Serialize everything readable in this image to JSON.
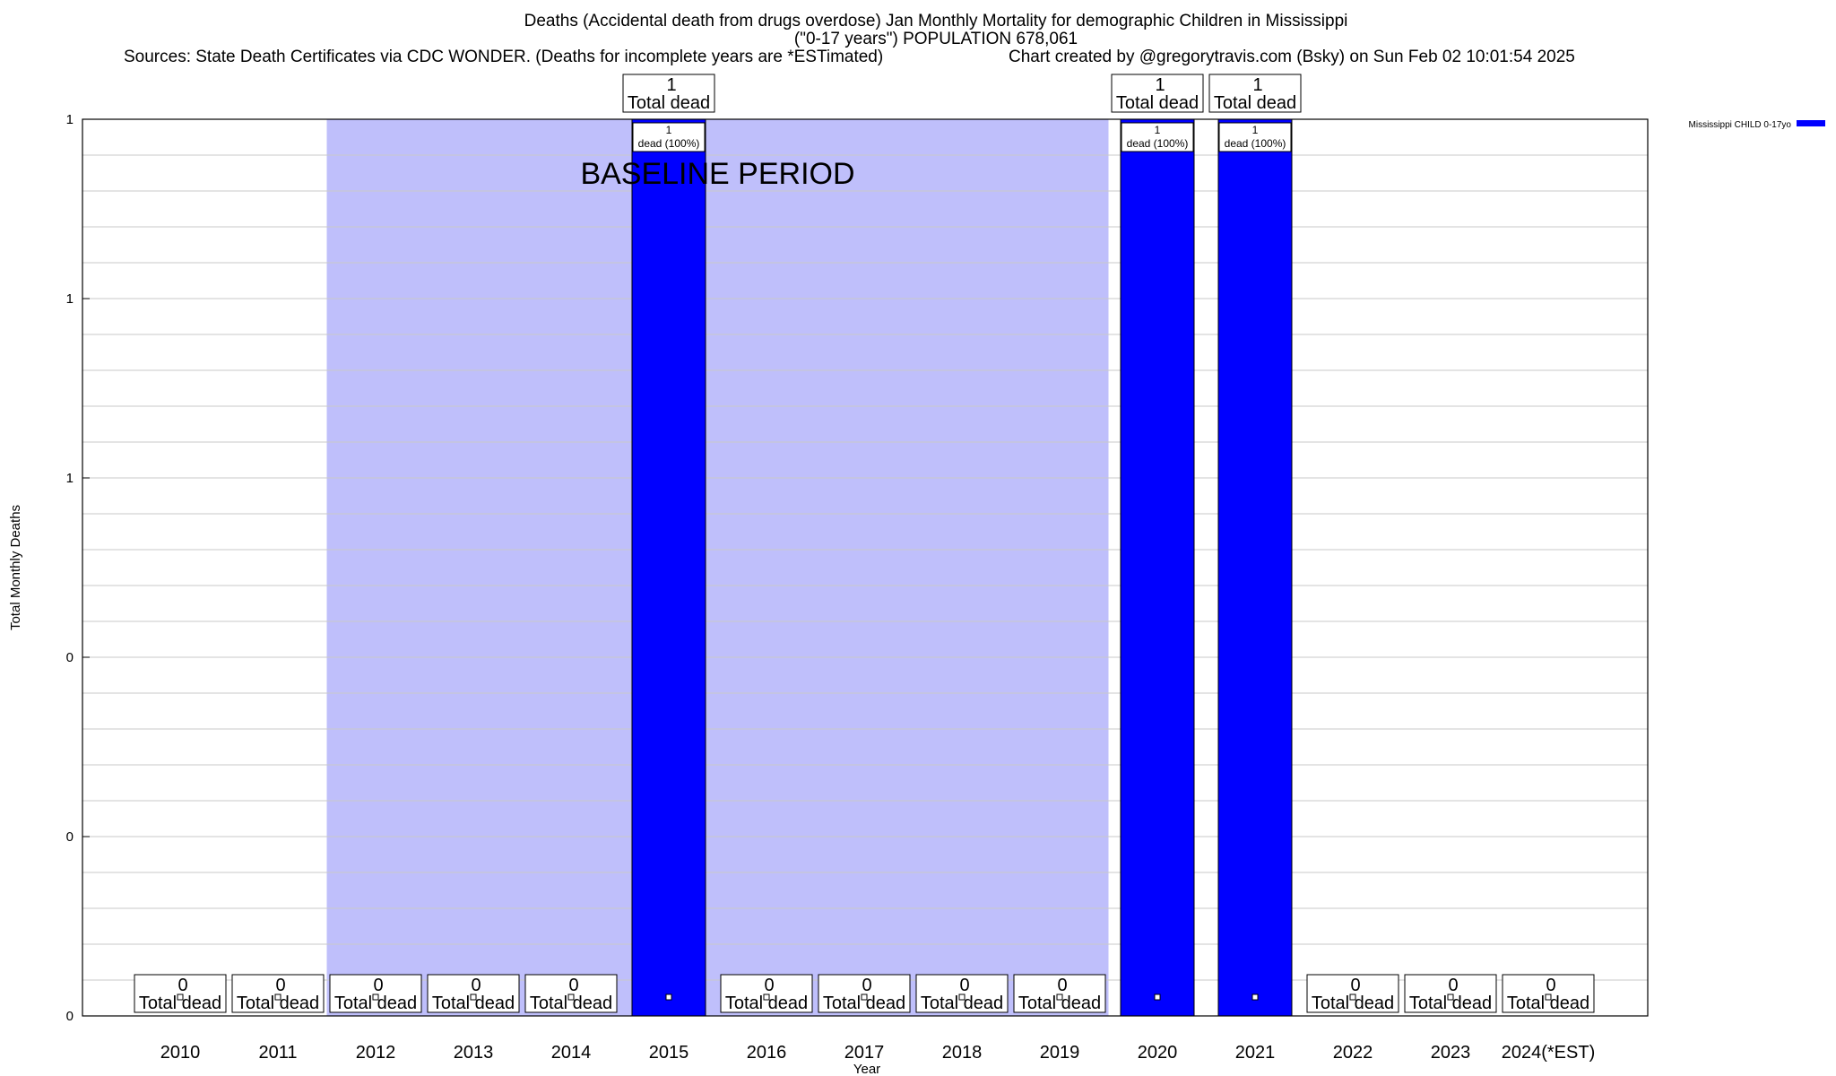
{
  "header": {
    "title_line1": "Deaths (Accidental death from drugs overdose) Jan Monthly Mortality for demographic Children in Mississippi",
    "title_line2": "(\"0-17 years\") POPULATION 678,061",
    "sources": "Sources: State Death Certificates via CDC WONDER. (Deaths for incomplete years are *ESTimated)",
    "credit": "Chart created by @gregorytravis.com (Bsky) on Sun Feb 02 10:01:54 2025"
  },
  "colors": {
    "bar": "#0000ff",
    "baseline_band": "#bfbffb",
    "grid": "#c8c8c8"
  },
  "chart_data": {
    "type": "bar",
    "xlabel": "Year",
    "ylabel": "Total Monthly Deaths",
    "ylim": [
      0,
      1
    ],
    "ytick_labels": [
      "0",
      "0",
      "0",
      "1",
      "1",
      "1"
    ],
    "categories": [
      "2010",
      "2011",
      "2012",
      "2013",
      "2014",
      "2015",
      "2016",
      "2017",
      "2018",
      "2019",
      "2020",
      "2021",
      "2022",
      "2023",
      "2024(*EST)"
    ],
    "series": [
      {
        "name": "Mississippi CHILD 0-17yo",
        "values": [
          0,
          0,
          0,
          0,
          0,
          1,
          0,
          0,
          0,
          0,
          1,
          1,
          0,
          0,
          0
        ]
      }
    ],
    "total_labels": [
      "0",
      "0",
      "0",
      "0",
      "0",
      "1",
      "0",
      "0",
      "0",
      "0",
      "1",
      "1",
      "0",
      "0",
      "0"
    ],
    "total_label_suffix": "Total dead",
    "bar_labels": [
      {
        "category": "2015",
        "line1": "1",
        "line2": "dead (100%)"
      },
      {
        "category": "2020",
        "line1": "1",
        "line2": "dead (100%)"
      },
      {
        "category": "2021",
        "line1": "1",
        "line2": "dead (100%)"
      }
    ],
    "baseline_period": {
      "label": "BASELINE PERIOD",
      "from": "2012",
      "to": "2019"
    },
    "legend_position": "top-right",
    "grid": true
  }
}
